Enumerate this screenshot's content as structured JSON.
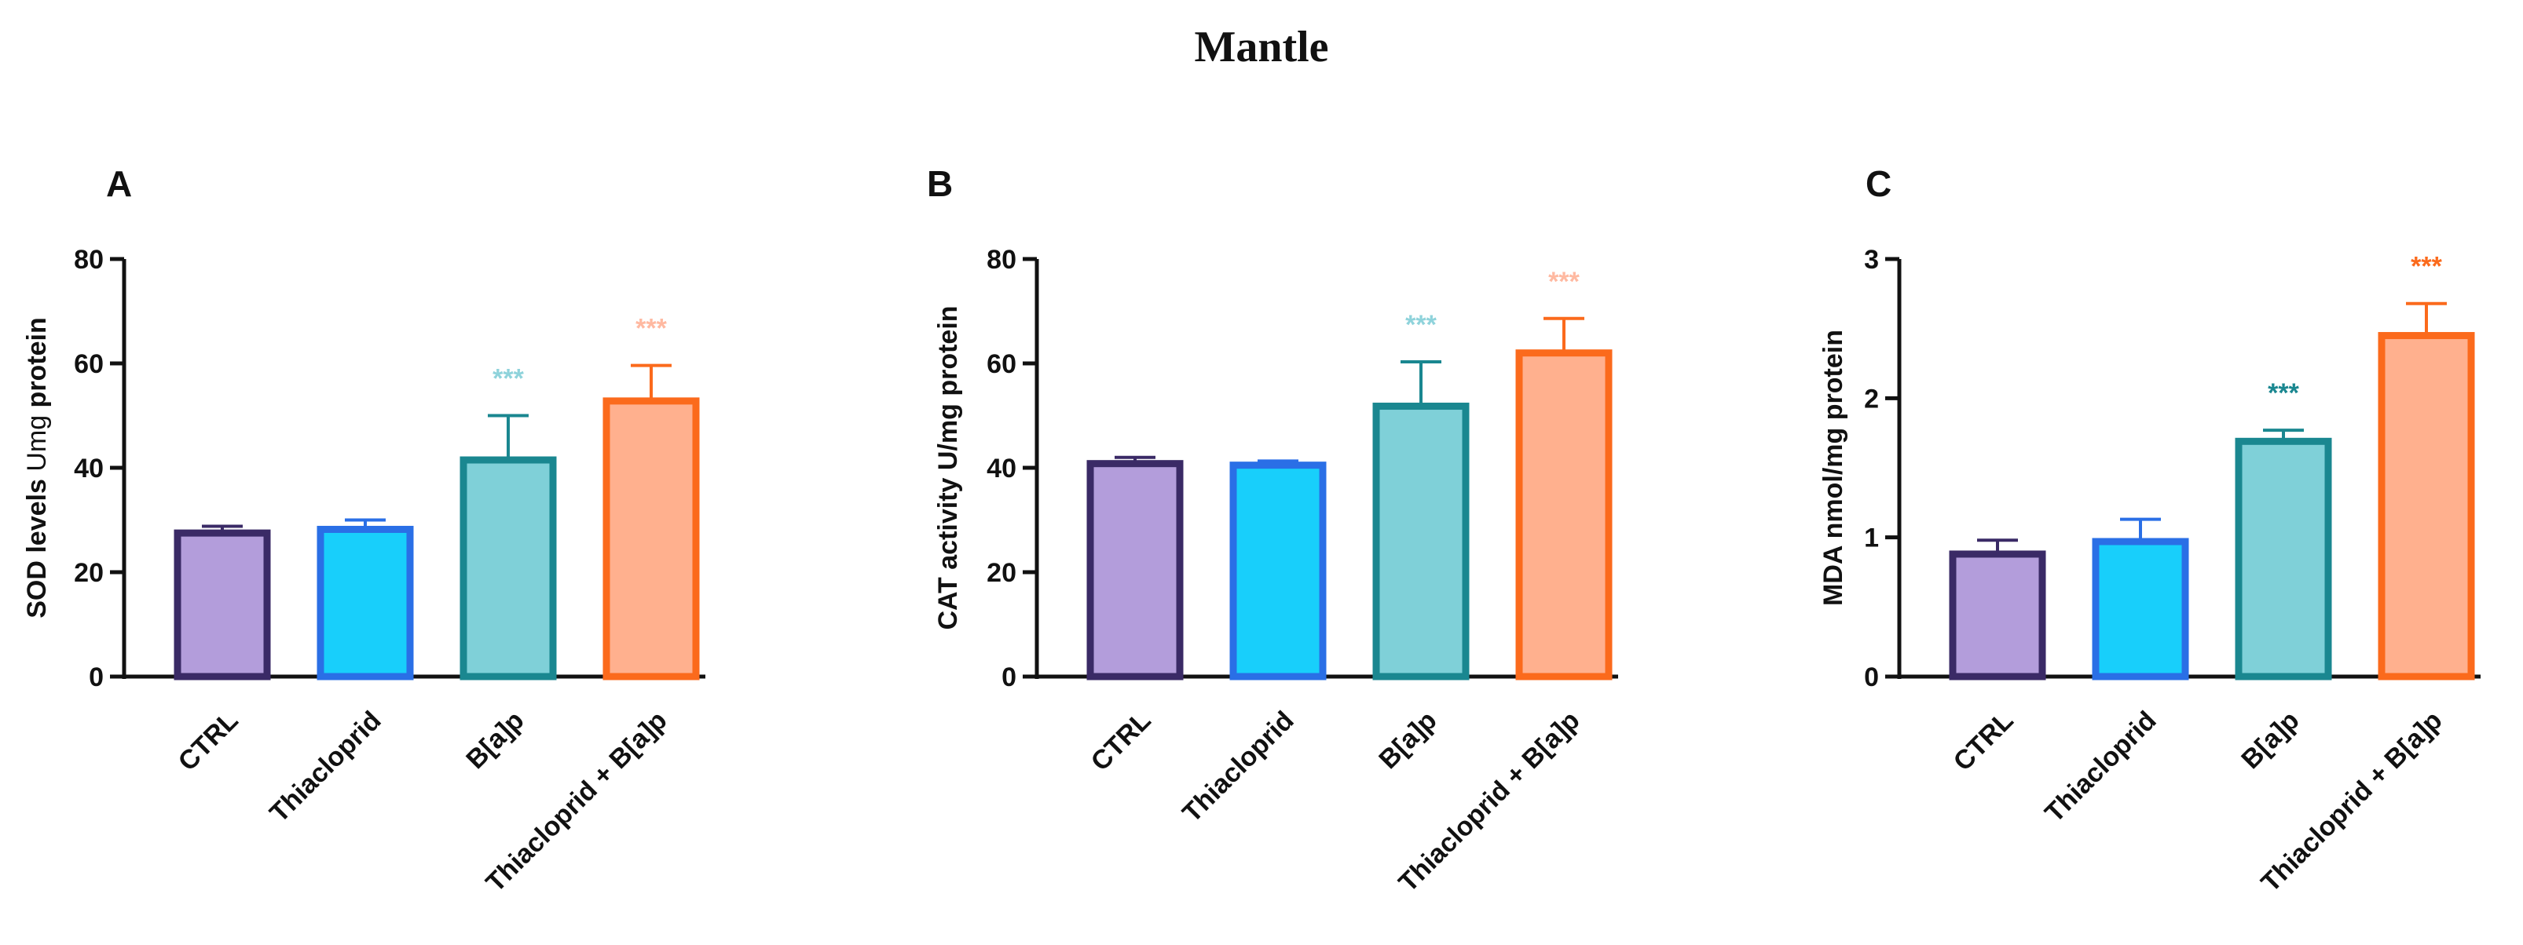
{
  "figure": {
    "title": "Mantle"
  },
  "colors": {
    "fills": [
      "#b39ddb",
      "#18cffb",
      "#7fd0d8",
      "#ffb08e"
    ],
    "edges": [
      "#3a2a66",
      "#2a6fe6",
      "#1a8790",
      "#fb6a1c"
    ],
    "axis": "#111111"
  },
  "chart_data": [
    {
      "type": "bar",
      "panel": "A",
      "ylabel": "SOD levels Umg protein",
      "ylabel_parts": [
        {
          "text": "SOD levels",
          "bold": true
        },
        {
          "text": " Umg ",
          "bold": false
        },
        {
          "text": "protein",
          "bold": true
        }
      ],
      "categories": [
        "CTRL",
        "Thiacloprid",
        "B[a]p",
        "Thiacloprid + B[a]p"
      ],
      "values": [
        27.5,
        28.2,
        41.5,
        52.8
      ],
      "errors": [
        1.3,
        1.8,
        8.5,
        6.8
      ],
      "significance": [
        "",
        "",
        "***",
        "***"
      ],
      "sig_colors": [
        "",
        "",
        "#8fd3db",
        "#ffb9a1"
      ],
      "ylim": [
        0,
        80
      ],
      "yticks": [
        0,
        20,
        40,
        60,
        80
      ]
    },
    {
      "type": "bar",
      "panel": "B",
      "ylabel": "CAT activity U/mg protein",
      "ylabel_parts": [
        {
          "text": "CAT activity U/mg protein",
          "bold": true
        }
      ],
      "categories": [
        "CTRL",
        "Thiacloprid",
        "B[a]p",
        "Thiacloprid + B[a]p"
      ],
      "values": [
        40.8,
        40.5,
        51.8,
        62.0
      ],
      "errors": [
        1.2,
        0.8,
        8.5,
        6.6
      ],
      "significance": [
        "",
        "",
        "***",
        "***"
      ],
      "sig_colors": [
        "",
        "",
        "#8fd3db",
        "#ffb9a1"
      ],
      "ylim": [
        0,
        80
      ],
      "yticks": [
        0,
        20,
        40,
        60,
        80
      ]
    },
    {
      "type": "bar",
      "panel": "C",
      "ylabel": "MDA nmol/mg protein",
      "ylabel_parts": [
        {
          "text": "MDA nmol/mg protein",
          "bold": true
        }
      ],
      "categories": [
        "CTRL",
        "Thiacloprid",
        "B[a]p",
        "Thiacloprid + B[a]p"
      ],
      "values": [
        0.88,
        0.97,
        1.69,
        2.45
      ],
      "errors": [
        0.1,
        0.16,
        0.08,
        0.23
      ],
      "significance": [
        "",
        "",
        "***",
        "***"
      ],
      "sig_colors": [
        "",
        "",
        "#1a8790",
        "#fb6a1c"
      ],
      "ylim": [
        0,
        3
      ],
      "yticks": [
        0,
        1,
        2,
        3
      ]
    }
  ]
}
